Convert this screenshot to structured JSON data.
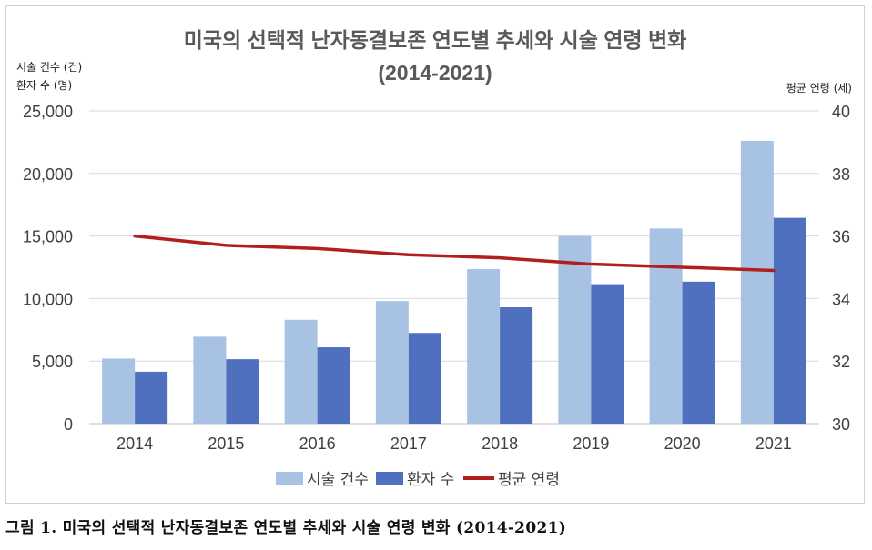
{
  "chart_data": {
    "type": "bar",
    "title": [
      "미국의 선택적 난자동결보존 연도별 추세와 시술 연령 변화",
      "(2014-2021)"
    ],
    "ylabel_left": [
      "시술 건수 (건)",
      "환자 수 (명)"
    ],
    "ylabel_right": "평균 연령 (세)",
    "categories": [
      "2014",
      "2015",
      "2016",
      "2017",
      "2018",
      "2019",
      "2020",
      "2021"
    ],
    "ylim_left": [
      0,
      25000
    ],
    "yticks_left": [
      "0",
      "5,000",
      "10,000",
      "15,000",
      "20,000",
      "25,000"
    ],
    "ylim_right": [
      30,
      40
    ],
    "yticks_right": [
      "30",
      "32",
      "34",
      "36",
      "38",
      "40"
    ],
    "series": [
      {
        "name": "시술 건수",
        "type": "bar",
        "axis": "left",
        "color": "#a7c2e2",
        "values": [
          5200,
          6950,
          8300,
          9800,
          12350,
          15000,
          15600,
          22600
        ]
      },
      {
        "name": "환자 수",
        "type": "bar",
        "axis": "left",
        "color": "#4f6fbf",
        "values": [
          4150,
          5150,
          6100,
          7250,
          9300,
          11150,
          11350,
          16450
        ]
      },
      {
        "name": "평균 연령",
        "type": "line",
        "axis": "right",
        "color": "#b01e1e",
        "values": [
          36.0,
          35.7,
          35.6,
          35.4,
          35.3,
          35.1,
          35.0,
          34.9
        ]
      }
    ],
    "legend_position": "bottom",
    "grid": true
  },
  "caption": "그림 1. 미국의 선택적 난자동결보존 연도별 추세와 시술 연령 변화 (2014-2021)"
}
